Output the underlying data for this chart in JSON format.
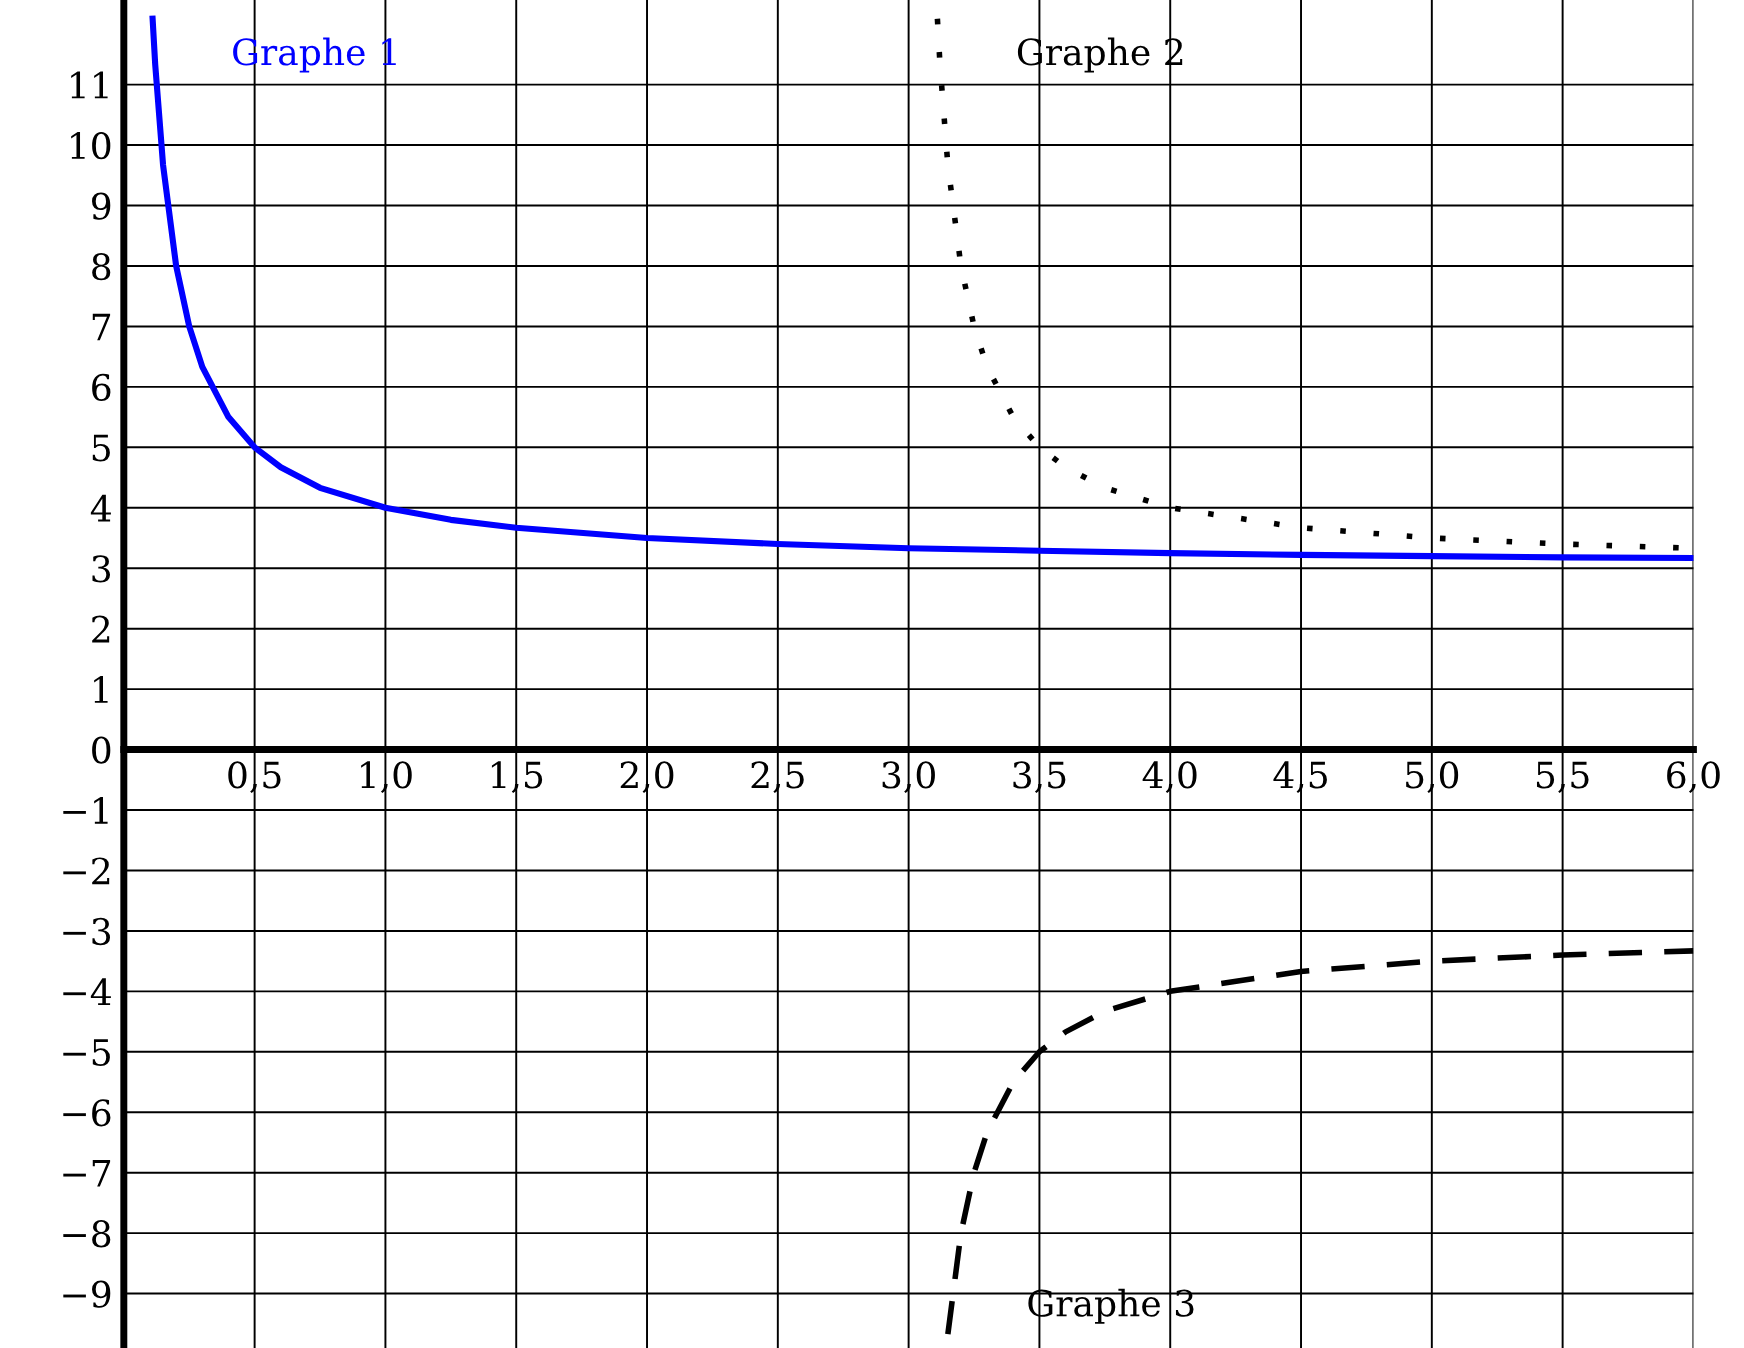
{
  "chart_data": {
    "type": "line",
    "xlim": [
      0,
      6
    ],
    "ylim": [
      -9.9,
      12.4
    ],
    "xticks": [
      {
        "value": 0.5,
        "label": "0,5"
      },
      {
        "value": 1,
        "label": "1,0"
      },
      {
        "value": 1.5,
        "label": "1,5"
      },
      {
        "value": 2,
        "label": "2,0"
      },
      {
        "value": 2.5,
        "label": "2,5"
      },
      {
        "value": 3,
        "label": "3,0"
      },
      {
        "value": 3.5,
        "label": "3,5"
      },
      {
        "value": 4,
        "label": "4,0"
      },
      {
        "value": 4.5,
        "label": "4,5"
      },
      {
        "value": 5,
        "label": "5,0"
      },
      {
        "value": 5.5,
        "label": "5,5"
      },
      {
        "value": 6,
        "label": "6,0"
      }
    ],
    "yticks": [
      {
        "value": -9,
        "label": "−9"
      },
      {
        "value": -8,
        "label": "−8"
      },
      {
        "value": -7,
        "label": "−7"
      },
      {
        "value": -6,
        "label": "−6"
      },
      {
        "value": -5,
        "label": "−5"
      },
      {
        "value": -4,
        "label": "−4"
      },
      {
        "value": -3,
        "label": "−3"
      },
      {
        "value": -2,
        "label": "−2"
      },
      {
        "value": -1,
        "label": "−1"
      },
      0,
      1,
      2,
      3,
      4,
      5,
      6,
      7,
      8,
      9,
      10,
      11
    ],
    "grid": true,
    "legend": false,
    "marker": "none",
    "series": [
      {
        "name": "Graphe 1",
        "color": "#0000ff",
        "line_style": "solid",
        "x": [
          0.11,
          0.12,
          0.15,
          0.2,
          0.25,
          0.3,
          0.4,
          0.5,
          0.6,
          0.75,
          1,
          1.25,
          1.5,
          2,
          2.5,
          3,
          3.5,
          4,
          4.5,
          5,
          5.5,
          6
        ],
        "values": [
          12.09,
          11.33,
          9.67,
          8,
          7,
          6.33,
          5.5,
          5,
          4.67,
          4.33,
          4,
          3.8,
          3.67,
          3.5,
          3.4,
          3.33,
          3.29,
          3.25,
          3.22,
          3.2,
          3.18,
          3.17
        ]
      },
      {
        "name": "Graphe 2",
        "color": "#000000",
        "line_style": "dotted",
        "x": [
          3.11,
          3.12,
          3.15,
          3.2,
          3.25,
          3.3,
          3.4,
          3.5,
          3.6,
          3.75,
          4,
          4.5,
          5,
          5.5,
          6
        ],
        "values": [
          12.09,
          11.33,
          9.67,
          8,
          7,
          6.33,
          5.5,
          5,
          4.67,
          4.33,
          4,
          3.67,
          3.5,
          3.4,
          3.33
        ]
      },
      {
        "name": "Graphe 3",
        "color": "#000000",
        "line_style": "dashed",
        "x": [
          3.15,
          3.2,
          3.25,
          3.3,
          3.4,
          3.5,
          3.6,
          3.75,
          4,
          4.5,
          5,
          5.5,
          6
        ],
        "values": [
          -9.67,
          -8,
          -7,
          -6.33,
          -5.5,
          -5,
          -4.67,
          -4.33,
          -4,
          -3.67,
          -3.5,
          -3.4,
          -3.33
        ]
      }
    ]
  }
}
